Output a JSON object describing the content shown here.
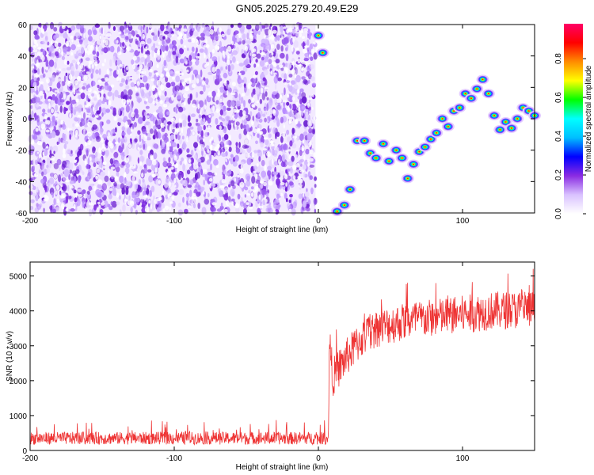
{
  "title": "GN05.2025.279.20.49.E29",
  "chart_data": [
    {
      "type": "heatmap",
      "xlabel": "Height of straight line (km)",
      "ylabel": "Frequency (Hz)",
      "xlim": [
        -200,
        150
      ],
      "ylim": [
        -60,
        60
      ],
      "x_ticks": [
        -200,
        -100,
        0,
        100
      ],
      "y_ticks": [
        -60,
        -40,
        -20,
        0,
        20,
        40,
        60
      ],
      "noise_region_x": [
        -200,
        -2
      ],
      "track": {
        "x": [
          0,
          3,
          8,
          13,
          18,
          22,
          27,
          32,
          36,
          40,
          45,
          49,
          54,
          58,
          62,
          66,
          70,
          74,
          78,
          82,
          86,
          90,
          94,
          98,
          102,
          106,
          110,
          114,
          118,
          122,
          126,
          130,
          134,
          138,
          142,
          146,
          150
        ],
        "y": [
          53,
          42,
          -63,
          -59,
          -55,
          -45,
          -14,
          -14,
          -22,
          -25,
          -16,
          -27,
          -20,
          -25,
          -38,
          -29,
          -21,
          -18,
          -13,
          -9,
          0,
          -5,
          5,
          7,
          16,
          13,
          19,
          25,
          16,
          2,
          -7,
          -2,
          -6,
          0,
          7,
          5,
          2
        ]
      },
      "colorbar": {
        "label": "Normalized spectral amplitude",
        "ticks": [
          "0.0",
          "0.2",
          "0.4",
          "0.6",
          "0.8"
        ],
        "range": [
          0,
          0.98
        ],
        "colors": [
          "#ffffff",
          "#d9c2ff",
          "#8a2be2",
          "#0000ff",
          "#00bfff",
          "#00ffff",
          "#00ff00",
          "#ffff00",
          "#ff8c00",
          "#ff0000",
          "#ff0066"
        ]
      }
    },
    {
      "type": "line",
      "xlabel": "Height of straight line (km)",
      "ylabel": "SNR (10 * v/v)",
      "xlim": [
        -200,
        150
      ],
      "ylim": [
        0,
        5400
      ],
      "x_ticks": [
        -200,
        -100,
        0,
        100
      ],
      "y_ticks": [
        0,
        1000,
        2000,
        3000,
        4000,
        5000
      ],
      "series_color": "#ee3333",
      "trend": {
        "x": [
          -200,
          7,
          7.5,
          10,
          20,
          30,
          40,
          60,
          80,
          100,
          120,
          150
        ],
        "y": [
          350,
          350,
          3200,
          2100,
          2700,
          3200,
          3500,
          3700,
          3800,
          3900,
          4000,
          4050
        ]
      }
    }
  ]
}
